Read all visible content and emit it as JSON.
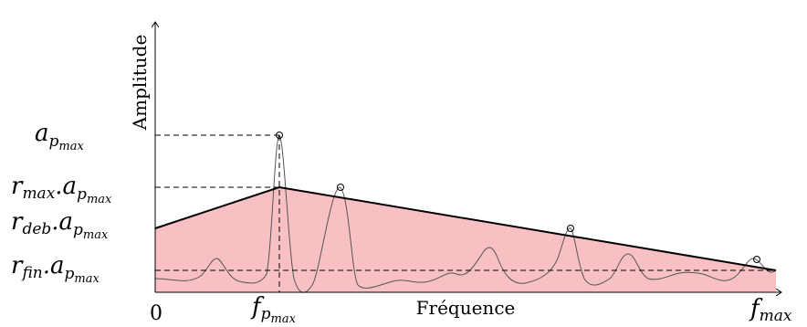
{
  "axes": {
    "y_label": "Amplitude",
    "x_label": "Fréquence",
    "origin_label": "0"
  },
  "levels": {
    "a_pmax": {
      "main": "a",
      "sub": "p",
      "subsub": "max"
    },
    "rmax_apmax": {
      "main": "r",
      "sub1": "max",
      "dot": ".a",
      "sub": "p",
      "subsub": "max"
    },
    "rdeb_apmax": {
      "main": "r",
      "sub1": "deb",
      "dot": ".a",
      "sub": "p",
      "subsub": "max"
    },
    "rfin_apmax": {
      "main": "r",
      "sub1": "fin",
      "dot": ".a",
      "sub": "p",
      "subsub": "max"
    }
  },
  "x_ticks": {
    "f_pmax": {
      "main": "f",
      "sub": "p",
      "subsub": "max"
    },
    "f_max": {
      "main": "f",
      "sub": "max"
    }
  },
  "colors": {
    "envelope_fill": "#f9c0c4",
    "envelope_line": "#000000",
    "spectrum": "#555555",
    "dashed": "#000000"
  }
}
